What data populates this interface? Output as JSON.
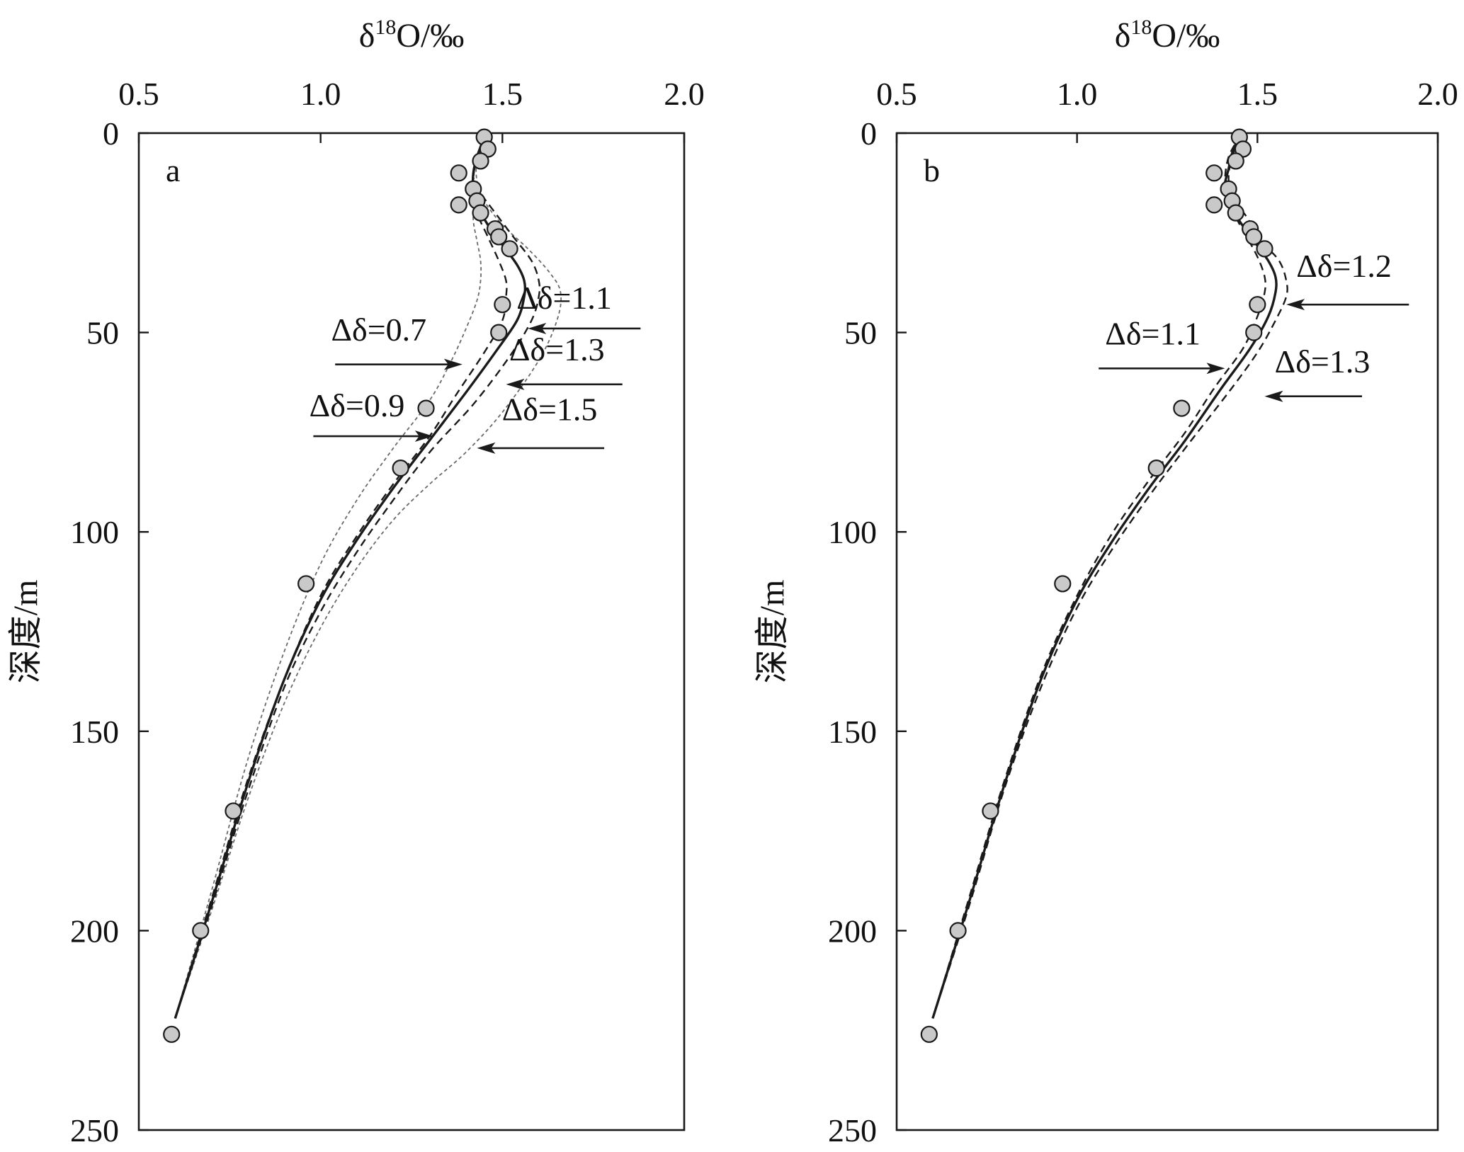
{
  "chart_data": [
    {
      "type": "line",
      "panel_label": "a",
      "xlabel": "δ18O/‰",
      "xlabel_parts": {
        "base": "δ",
        "sup": "18",
        "rest": "O/‰"
      },
      "ylabel": "深度/m",
      "xlim": [
        0.5,
        2.0
      ],
      "ylim": [
        250,
        0
      ],
      "x_ticks": [
        "0.5",
        "1.0",
        "1.5",
        "2.0"
      ],
      "y_ticks": [
        "0",
        "50",
        "100",
        "150",
        "200",
        "250"
      ],
      "grid": false,
      "points": [
        {
          "x": 1.45,
          "y": 1
        },
        {
          "x": 1.46,
          "y": 4
        },
        {
          "x": 1.44,
          "y": 7
        },
        {
          "x": 1.38,
          "y": 10
        },
        {
          "x": 1.42,
          "y": 14
        },
        {
          "x": 1.43,
          "y": 17
        },
        {
          "x": 1.38,
          "y": 18
        },
        {
          "x": 1.44,
          "y": 20
        },
        {
          "x": 1.48,
          "y": 24
        },
        {
          "x": 1.49,
          "y": 26
        },
        {
          "x": 1.52,
          "y": 29
        },
        {
          "x": 1.5,
          "y": 43
        },
        {
          "x": 1.49,
          "y": 50
        },
        {
          "x": 1.29,
          "y": 69
        },
        {
          "x": 1.22,
          "y": 84
        },
        {
          "x": 0.96,
          "y": 113
        },
        {
          "x": 0.76,
          "y": 170
        },
        {
          "x": 0.67,
          "y": 200
        },
        {
          "x": 0.59,
          "y": 226
        }
      ],
      "series": [
        {
          "style": "solid",
          "x": [
            0.6,
            0.7,
            0.8,
            0.9,
            1.0,
            1.1,
            1.2,
            1.3,
            1.4,
            1.48,
            1.54,
            1.56,
            1.56,
            1.54,
            1.5,
            1.46,
            1.43,
            1.42,
            1.42,
            1.43,
            1.45
          ],
          "y": [
            222,
            193,
            163,
            137,
            117,
            102,
            89,
            77,
            65,
            55,
            47,
            41,
            37,
            33,
            28,
            23,
            18,
            14,
            10,
            6,
            1
          ]
        },
        {
          "style": "dashed",
          "x": [
            0.6,
            0.7,
            0.8,
            0.9,
            1.0,
            1.1,
            1.2,
            1.3,
            1.37,
            1.45,
            1.5,
            1.51,
            1.51,
            1.49,
            1.46,
            1.43,
            1.42,
            1.42,
            1.43,
            1.45
          ],
          "y": [
            222,
            192,
            162,
            137,
            116,
            101,
            88,
            76,
            66,
            55,
            47,
            41,
            37,
            32,
            26,
            20,
            15,
            11,
            6,
            1
          ]
        },
        {
          "style": "dashed",
          "x": [
            0.6,
            0.7,
            0.8,
            0.9,
            1.0,
            1.1,
            1.2,
            1.3,
            1.42,
            1.52,
            1.58,
            1.6,
            1.6,
            1.58,
            1.53,
            1.48,
            1.44,
            1.42,
            1.43,
            1.45
          ],
          "y": [
            222,
            194,
            165,
            139,
            120,
            105,
            92,
            80,
            68,
            56,
            47,
            41,
            37,
            32,
            26,
            20,
            15,
            11,
            6,
            1
          ]
        },
        {
          "style": "dotted",
          "x": [
            0.6,
            0.7,
            0.8,
            0.9,
            1.0,
            1.1,
            1.2,
            1.3,
            1.36,
            1.4,
            1.43,
            1.44,
            1.44,
            1.43,
            1.42,
            1.42,
            1.42,
            1.43,
            1.45
          ],
          "y": [
            222,
            190,
            157,
            130,
            108,
            92,
            79,
            67,
            57,
            49,
            42,
            37,
            32,
            27,
            22,
            17,
            12,
            6,
            1
          ]
        },
        {
          "style": "dotted",
          "x": [
            0.6,
            0.7,
            0.8,
            0.9,
            1.0,
            1.1,
            1.2,
            1.3,
            1.4,
            1.5,
            1.6,
            1.65,
            1.66,
            1.63,
            1.57,
            1.5,
            1.45,
            1.43,
            1.43,
            1.45
          ],
          "y": [
            222,
            195,
            167,
            143,
            124,
            109,
            97,
            88,
            80,
            70,
            57,
            47,
            40,
            35,
            29,
            23,
            17,
            12,
            6,
            1
          ]
        }
      ],
      "annotations": [
        {
          "label": "Δδ=1.1",
          "text_x": 1.67,
          "text_y": 44,
          "tip_x": 1.57,
          "tip_y": 49,
          "tail_x": 1.88,
          "tail_y": 49
        },
        {
          "label": "Δδ=0.7",
          "text_x": 1.16,
          "text_y": 52,
          "tip_x": 1.39,
          "tip_y": 58,
          "tail_x": 1.04,
          "tail_y": 58
        },
        {
          "label": "Δδ=1.3",
          "text_x": 1.65,
          "text_y": 57,
          "tip_x": 1.51,
          "tip_y": 63,
          "tail_x": 1.83,
          "tail_y": 63
        },
        {
          "label": "Δδ=0.9",
          "text_x": 1.1,
          "text_y": 71,
          "tip_x": 1.31,
          "tip_y": 76,
          "tail_x": 0.98,
          "tail_y": 76
        },
        {
          "label": "Δδ=1.5",
          "text_x": 1.63,
          "text_y": 72,
          "tip_x": 1.43,
          "tip_y": 79,
          "tail_x": 1.78,
          "tail_y": 79
        }
      ]
    },
    {
      "type": "line",
      "panel_label": "b",
      "xlabel": "δ18O/‰",
      "xlabel_parts": {
        "base": "δ",
        "sup": "18",
        "rest": "O/‰"
      },
      "ylabel": "深度/m",
      "xlim": [
        0.5,
        2.0
      ],
      "ylim": [
        250,
        0
      ],
      "x_ticks": [
        "0.5",
        "1.0",
        "1.5",
        "2.0"
      ],
      "y_ticks": [
        "0",
        "50",
        "100",
        "150",
        "200",
        "250"
      ],
      "grid": false,
      "points": [
        {
          "x": 1.45,
          "y": 1
        },
        {
          "x": 1.46,
          "y": 4
        },
        {
          "x": 1.44,
          "y": 7
        },
        {
          "x": 1.38,
          "y": 10
        },
        {
          "x": 1.42,
          "y": 14
        },
        {
          "x": 1.43,
          "y": 17
        },
        {
          "x": 1.38,
          "y": 18
        },
        {
          "x": 1.44,
          "y": 20
        },
        {
          "x": 1.48,
          "y": 24
        },
        {
          "x": 1.49,
          "y": 26
        },
        {
          "x": 1.52,
          "y": 29
        },
        {
          "x": 1.5,
          "y": 43
        },
        {
          "x": 1.49,
          "y": 50
        },
        {
          "x": 1.29,
          "y": 69
        },
        {
          "x": 1.22,
          "y": 84
        },
        {
          "x": 0.96,
          "y": 113
        },
        {
          "x": 0.76,
          "y": 170
        },
        {
          "x": 0.67,
          "y": 200
        },
        {
          "x": 0.59,
          "y": 226
        }
      ],
      "series": [
        {
          "style": "solid",
          "x": [
            0.6,
            0.7,
            0.8,
            0.9,
            1.0,
            1.1,
            1.2,
            1.3,
            1.4,
            1.48,
            1.53,
            1.55,
            1.55,
            1.53,
            1.49,
            1.45,
            1.42,
            1.41,
            1.42,
            1.43,
            1.45
          ],
          "y": [
            222,
            193,
            163,
            137,
            117,
            102,
            89,
            77,
            64,
            54,
            46,
            40,
            36,
            32,
            27,
            22,
            17,
            13,
            9,
            5,
            1
          ]
        },
        {
          "style": "dashed",
          "x": [
            0.6,
            0.7,
            0.8,
            0.9,
            1.0,
            1.1,
            1.2,
            1.3,
            1.38,
            1.46,
            1.5,
            1.52,
            1.52,
            1.5,
            1.47,
            1.44,
            1.42,
            1.41,
            1.42,
            1.45
          ],
          "y": [
            222,
            192,
            162,
            136,
            116,
            100,
            87,
            75,
            64,
            54,
            46,
            40,
            36,
            31,
            26,
            21,
            16,
            12,
            6,
            1
          ]
        },
        {
          "style": "dashed",
          "x": [
            0.6,
            0.7,
            0.8,
            0.9,
            1.0,
            1.1,
            1.2,
            1.3,
            1.42,
            1.5,
            1.55,
            1.58,
            1.58,
            1.56,
            1.51,
            1.47,
            1.43,
            1.42,
            1.43,
            1.45
          ],
          "y": [
            222,
            194,
            164,
            139,
            119,
            104,
            91,
            79,
            65,
            55,
            47,
            41,
            37,
            32,
            27,
            21,
            16,
            11,
            6,
            1
          ]
        }
      ],
      "annotations": [
        {
          "label": "Δδ=1.2",
          "text_x": 1.74,
          "text_y": 36,
          "tip_x": 1.58,
          "tip_y": 43,
          "tail_x": 1.92,
          "tail_y": 43
        },
        {
          "label": "Δδ=1.1",
          "text_x": 1.21,
          "text_y": 53,
          "tip_x": 1.41,
          "tip_y": 59,
          "tail_x": 1.06,
          "tail_y": 59
        },
        {
          "label": "Δδ=1.3",
          "text_x": 1.68,
          "text_y": 60,
          "tip_x": 1.52,
          "tip_y": 66,
          "tail_x": 1.79,
          "tail_y": 66
        }
      ]
    }
  ]
}
